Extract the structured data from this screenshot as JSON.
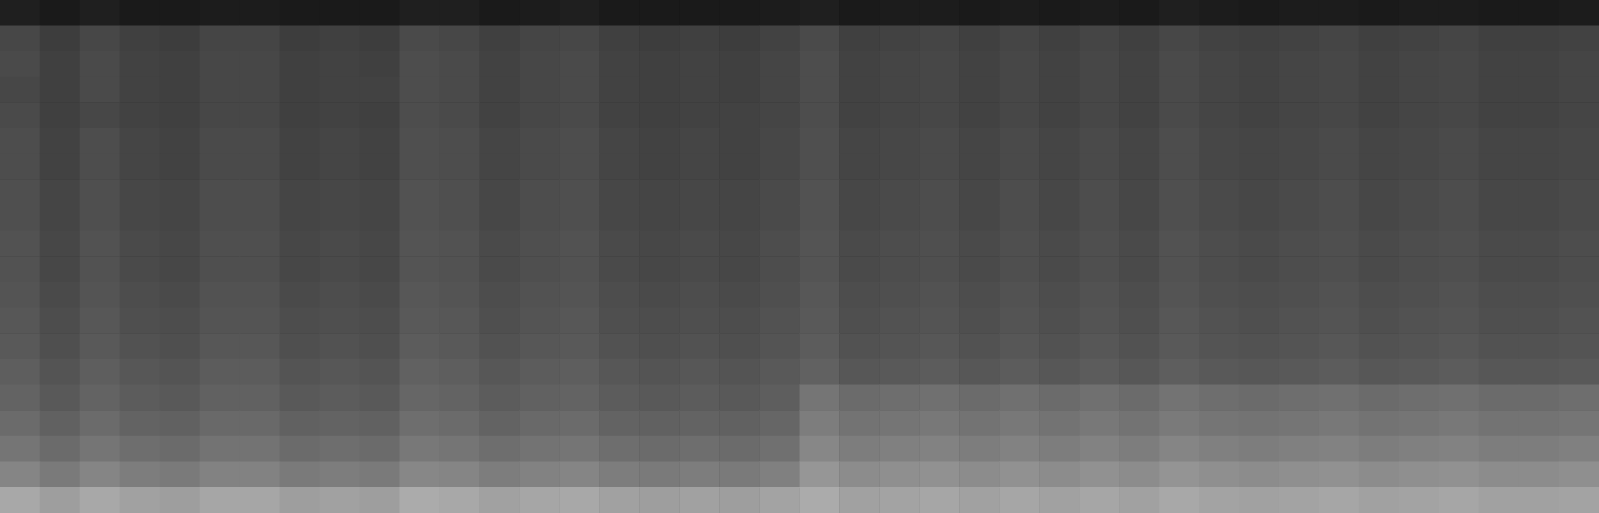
{
  "chart_data": {
    "type": "heatmap",
    "tick_labels": false,
    "grid": false,
    "color_range": [
      0,
      100
    ],
    "cells": [
      [
        12,
        10,
        12,
        10,
        10,
        11,
        11,
        10,
        10,
        10,
        12,
        12,
        10,
        11,
        12,
        10,
        10,
        10,
        10,
        11,
        12,
        10,
        11,
        11,
        10,
        11,
        10,
        11,
        10,
        12,
        11,
        10,
        11,
        11,
        10,
        11,
        11,
        10,
        10,
        11
      ],
      [
        28,
        24,
        28,
        25,
        24,
        27,
        27,
        24,
        25,
        24,
        29,
        28,
        25,
        27,
        28,
        25,
        24,
        25,
        24,
        26,
        29,
        25,
        26,
        27,
        25,
        27,
        25,
        27,
        25,
        28,
        26,
        25,
        26,
        27,
        25,
        26,
        27,
        25,
        25,
        26
      ],
      [
        29,
        25,
        29,
        26,
        25,
        28,
        28,
        25,
        26,
        25,
        30,
        29,
        26,
        28,
        29,
        26,
        25,
        26,
        25,
        27,
        30,
        26,
        27,
        28,
        26,
        28,
        26,
        28,
        26,
        29,
        27,
        26,
        27,
        28,
        26,
        27,
        28,
        26,
        26,
        27
      ],
      [
        28,
        25,
        29,
        26,
        25,
        28,
        28,
        25,
        26,
        26,
        30,
        29,
        26,
        28,
        29,
        26,
        25,
        26,
        25,
        27,
        30,
        26,
        27,
        28,
        26,
        28,
        26,
        28,
        26,
        29,
        27,
        26,
        27,
        28,
        26,
        27,
        28,
        26,
        26,
        27
      ],
      [
        29,
        25,
        28,
        26,
        25,
        28,
        28,
        25,
        26,
        25,
        30,
        29,
        26,
        28,
        29,
        26,
        25,
        26,
        26,
        27,
        30,
        26,
        27,
        28,
        26,
        28,
        26,
        28,
        26,
        29,
        27,
        26,
        27,
        28,
        26,
        27,
        28,
        26,
        26,
        27
      ],
      [
        30,
        26,
        30,
        27,
        26,
        29,
        29,
        26,
        27,
        26,
        31,
        30,
        27,
        29,
        30,
        27,
        26,
        27,
        26,
        28,
        31,
        27,
        28,
        29,
        27,
        29,
        27,
        29,
        27,
        30,
        28,
        27,
        28,
        29,
        27,
        28,
        29,
        27,
        27,
        28
      ],
      [
        30,
        26,
        30,
        27,
        26,
        29,
        29,
        26,
        27,
        26,
        31,
        30,
        27,
        29,
        30,
        27,
        26,
        27,
        26,
        28,
        31,
        27,
        28,
        29,
        27,
        29,
        27,
        29,
        27,
        30,
        28,
        27,
        28,
        29,
        27,
        28,
        29,
        27,
        27,
        28
      ],
      [
        31,
        27,
        31,
        28,
        27,
        30,
        30,
        27,
        28,
        27,
        32,
        31,
        28,
        30,
        31,
        28,
        27,
        28,
        27,
        29,
        32,
        28,
        29,
        30,
        28,
        30,
        28,
        30,
        28,
        31,
        29,
        28,
        29,
        30,
        28,
        29,
        30,
        28,
        28,
        29
      ],
      [
        31,
        27,
        31,
        28,
        27,
        30,
        30,
        27,
        28,
        27,
        32,
        31,
        28,
        30,
        31,
        28,
        27,
        28,
        27,
        29,
        32,
        28,
        29,
        30,
        28,
        30,
        28,
        30,
        28,
        31,
        29,
        28,
        29,
        30,
        28,
        29,
        30,
        28,
        28,
        29
      ],
      [
        32,
        28,
        32,
        29,
        28,
        31,
        31,
        28,
        29,
        28,
        33,
        32,
        29,
        31,
        32,
        29,
        28,
        29,
        28,
        30,
        33,
        29,
        30,
        31,
        29,
        31,
        29,
        31,
        29,
        32,
        30,
        29,
        30,
        31,
        29,
        30,
        31,
        29,
        29,
        30
      ],
      [
        32,
        28,
        32,
        29,
        28,
        31,
        31,
        28,
        29,
        28,
        33,
        32,
        29,
        31,
        32,
        29,
        28,
        29,
        28,
        30,
        33,
        29,
        30,
        31,
        29,
        31,
        29,
        31,
        29,
        32,
        30,
        29,
        30,
        31,
        29,
        30,
        31,
        29,
        29,
        30
      ],
      [
        33,
        29,
        33,
        30,
        29,
        32,
        32,
        29,
        30,
        29,
        34,
        33,
        30,
        32,
        33,
        30,
        29,
        30,
        29,
        31,
        34,
        30,
        31,
        32,
        30,
        32,
        30,
        32,
        30,
        33,
        31,
        30,
        31,
        32,
        30,
        31,
        32,
        30,
        30,
        31
      ],
      [
        34,
        30,
        34,
        31,
        30,
        33,
        33,
        30,
        31,
        30,
        35,
        34,
        31,
        33,
        34,
        31,
        30,
        31,
        30,
        32,
        35,
        31,
        32,
        33,
        31,
        33,
        31,
        33,
        31,
        34,
        32,
        31,
        32,
        33,
        31,
        32,
        33,
        31,
        31,
        32
      ],
      [
        35,
        31,
        35,
        32,
        31,
        34,
        34,
        31,
        32,
        31,
        36,
        35,
        32,
        34,
        35,
        32,
        31,
        32,
        31,
        33,
        36,
        32,
        33,
        34,
        32,
        34,
        32,
        34,
        32,
        35,
        33,
        32,
        33,
        34,
        32,
        33,
        34,
        32,
        32,
        33
      ],
      [
        37,
        33,
        37,
        34,
        33,
        36,
        36,
        33,
        34,
        33,
        38,
        37,
        34,
        36,
        37,
        34,
        33,
        34,
        33,
        35,
        38,
        34,
        35,
        36,
        34,
        36,
        34,
        36,
        34,
        37,
        35,
        34,
        35,
        36,
        34,
        35,
        36,
        34,
        34,
        35
      ],
      [
        39,
        35,
        39,
        36,
        35,
        38,
        38,
        35,
        36,
        35,
        40,
        39,
        36,
        38,
        39,
        36,
        35,
        36,
        35,
        37,
        46,
        42,
        43,
        44,
        42,
        44,
        42,
        44,
        42,
        45,
        43,
        42,
        43,
        44,
        42,
        43,
        44,
        42,
        42,
        43
      ],
      [
        42,
        38,
        42,
        39,
        38,
        41,
        41,
        38,
        39,
        38,
        43,
        42,
        39,
        41,
        42,
        39,
        38,
        39,
        38,
        40,
        49,
        45,
        46,
        47,
        45,
        47,
        45,
        47,
        45,
        48,
        46,
        45,
        46,
        47,
        45,
        46,
        47,
        45,
        45,
        46
      ],
      [
        46,
        42,
        46,
        43,
        42,
        45,
        45,
        42,
        43,
        42,
        47,
        46,
        43,
        45,
        46,
        43,
        42,
        43,
        42,
        44,
        53,
        49,
        50,
        51,
        49,
        51,
        49,
        51,
        49,
        52,
        50,
        49,
        50,
        51,
        49,
        50,
        51,
        49,
        49,
        50
      ],
      [
        52,
        48,
        52,
        49,
        48,
        51,
        51,
        48,
        49,
        48,
        53,
        52,
        49,
        51,
        52,
        49,
        48,
        49,
        48,
        50,
        59,
        55,
        56,
        57,
        55,
        57,
        55,
        57,
        55,
        58,
        56,
        55,
        56,
        57,
        55,
        56,
        57,
        55,
        55,
        56
      ],
      [
        66,
        62,
        66,
        63,
        62,
        65,
        65,
        62,
        63,
        62,
        67,
        66,
        63,
        65,
        66,
        63,
        62,
        63,
        62,
        64,
        67,
        63,
        64,
        65,
        63,
        65,
        63,
        65,
        63,
        66,
        64,
        63,
        64,
        65,
        63,
        64,
        65,
        63,
        63,
        64
      ]
    ]
  }
}
